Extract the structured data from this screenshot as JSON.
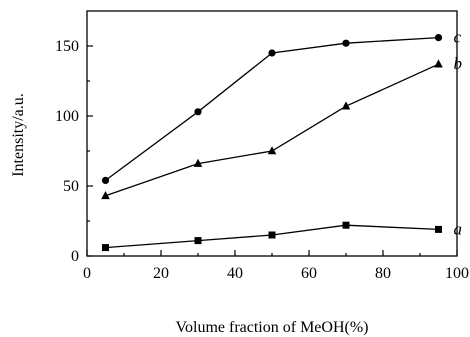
{
  "chart_data": {
    "type": "line",
    "xlabel": "Volume fraction of MeOH(%)",
    "ylabel": "Intensity/a.u.",
    "xlim": [
      0,
      100
    ],
    "ylim": [
      0,
      175
    ],
    "xticks": [
      0,
      20,
      40,
      60,
      80,
      100
    ],
    "yticks": [
      0,
      50,
      100,
      150
    ],
    "xtick_labels": [
      "0",
      "20",
      "40",
      "60",
      "80",
      "100"
    ],
    "ytick_labels": [
      "0",
      "50",
      "100",
      "150"
    ],
    "grid": false,
    "series": [
      {
        "name": "a",
        "marker": "square",
        "x": [
          5,
          30,
          50,
          70,
          95
        ],
        "y": [
          6,
          11,
          15,
          22,
          19
        ]
      },
      {
        "name": "b",
        "marker": "triangle",
        "x": [
          5,
          30,
          50,
          70,
          95
        ],
        "y": [
          43,
          66,
          75,
          107,
          137
        ]
      },
      {
        "name": "c",
        "marker": "circle",
        "x": [
          5,
          30,
          50,
          70,
          95
        ],
        "y": [
          54,
          103,
          145,
          152,
          156
        ]
      }
    ]
  }
}
